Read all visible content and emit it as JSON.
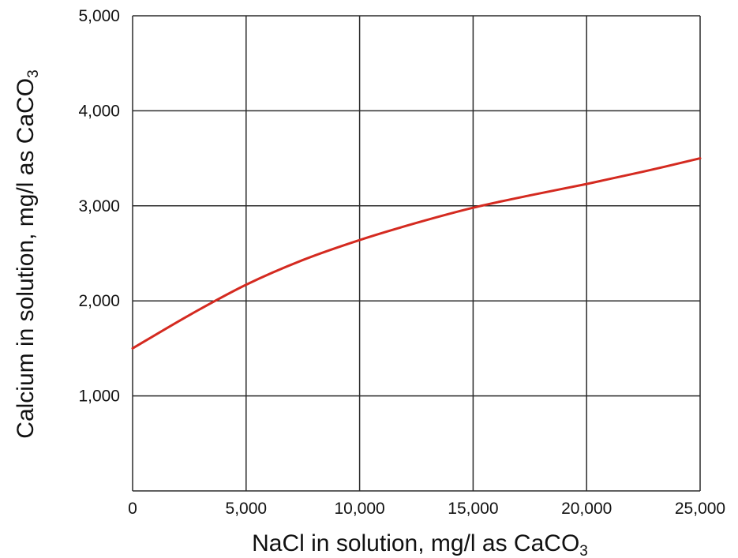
{
  "chart_data": {
    "type": "line",
    "xlabel": "NaCl in solution, mg/l as CaCO",
    "xlabel_sub": "3",
    "ylabel": "Calcium in solution, mg/l as CaCO",
    "ylabel_sub": "3",
    "xlim": [
      0,
      25000
    ],
    "ylim": [
      0,
      5000
    ],
    "x_ticks": [
      "0",
      "5,000",
      "10,000",
      "15,000",
      "20,000",
      "25,000"
    ],
    "y_ticks": [
      "1,000",
      "2,000",
      "3,000",
      "4,000",
      "5,000"
    ],
    "grid": true,
    "legend": "none",
    "series": [
      {
        "color": "#d42a20",
        "x": [
          0,
          2500,
          5000,
          7500,
          10000,
          12500,
          15000,
          17500,
          20000,
          22500,
          25000
        ],
        "y": [
          1500,
          1850,
          2170,
          2430,
          2640,
          2820,
          2980,
          3110,
          3230,
          3360,
          3500
        ]
      }
    ]
  }
}
